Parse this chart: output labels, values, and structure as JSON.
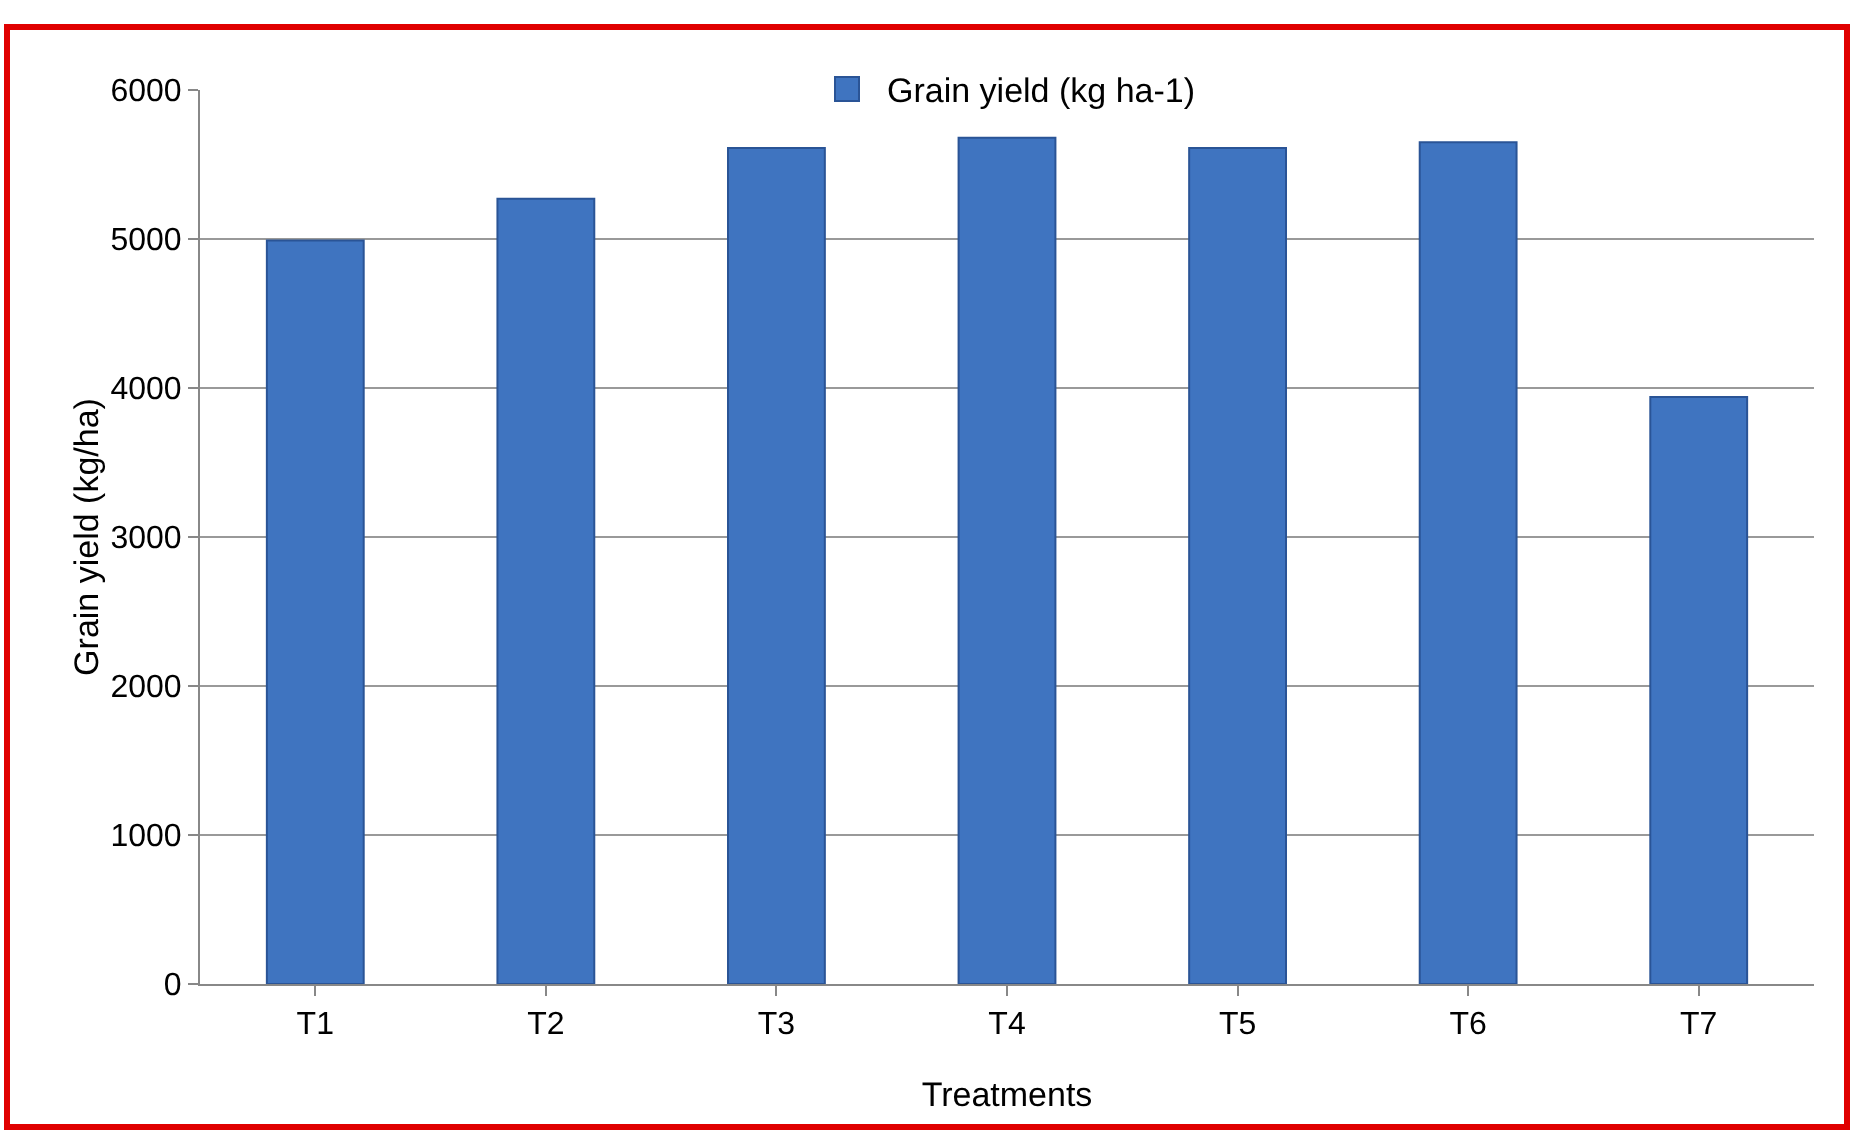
{
  "chart_data": {
    "type": "bar",
    "xlabel": "Treatments",
    "ylabel": "Grain yield (kg/ha)",
    "categories": [
      "T1",
      "T2",
      "T3",
      "T4",
      "T5",
      "T6",
      "T7"
    ],
    "series": [
      {
        "name": "Grain yield (kg ha-1)",
        "color": "#3f74c0",
        "values": [
          4990,
          5270,
          5610,
          5680,
          5610,
          5650,
          3940
        ]
      }
    ],
    "ylim": [
      0,
      6000
    ],
    "yticks": [
      0,
      1000,
      2000,
      3000,
      4000,
      5000,
      6000
    ],
    "grid": "y",
    "legend": "top"
  }
}
